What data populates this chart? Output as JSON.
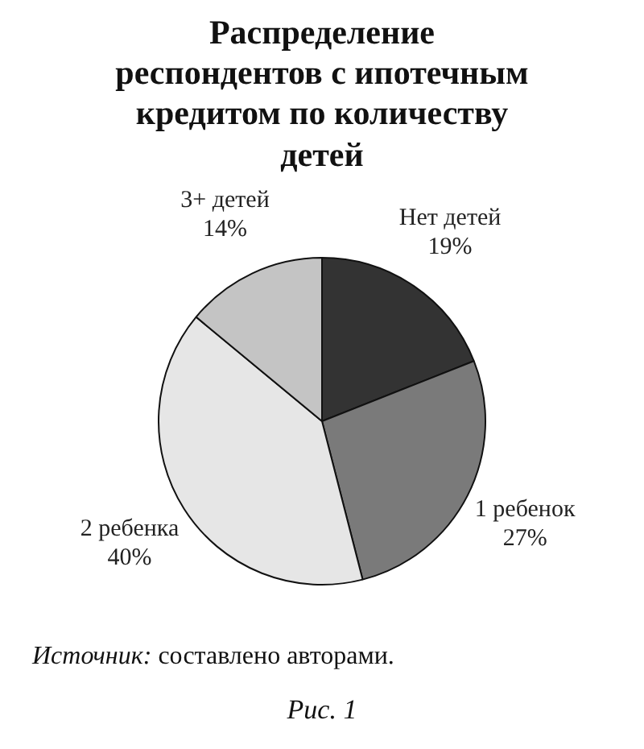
{
  "chart_data": {
    "type": "pie",
    "title": "Распределение респондентов с ипотечным кредитом по количеству детей",
    "categories": [
      "Нет детей",
      "1 ребенок",
      "2 ребенка",
      "3+ детей"
    ],
    "values": [
      19,
      27,
      40,
      14
    ],
    "value_labels": [
      "19%",
      "27%",
      "40%",
      "14%"
    ],
    "colors": [
      "#333333",
      "#7a7a7a",
      "#e6e6e6",
      "#c4c4c4"
    ],
    "legend": false,
    "annotations": [
      "Источник: составлено авторами.",
      "Рис. 1"
    ]
  }
}
